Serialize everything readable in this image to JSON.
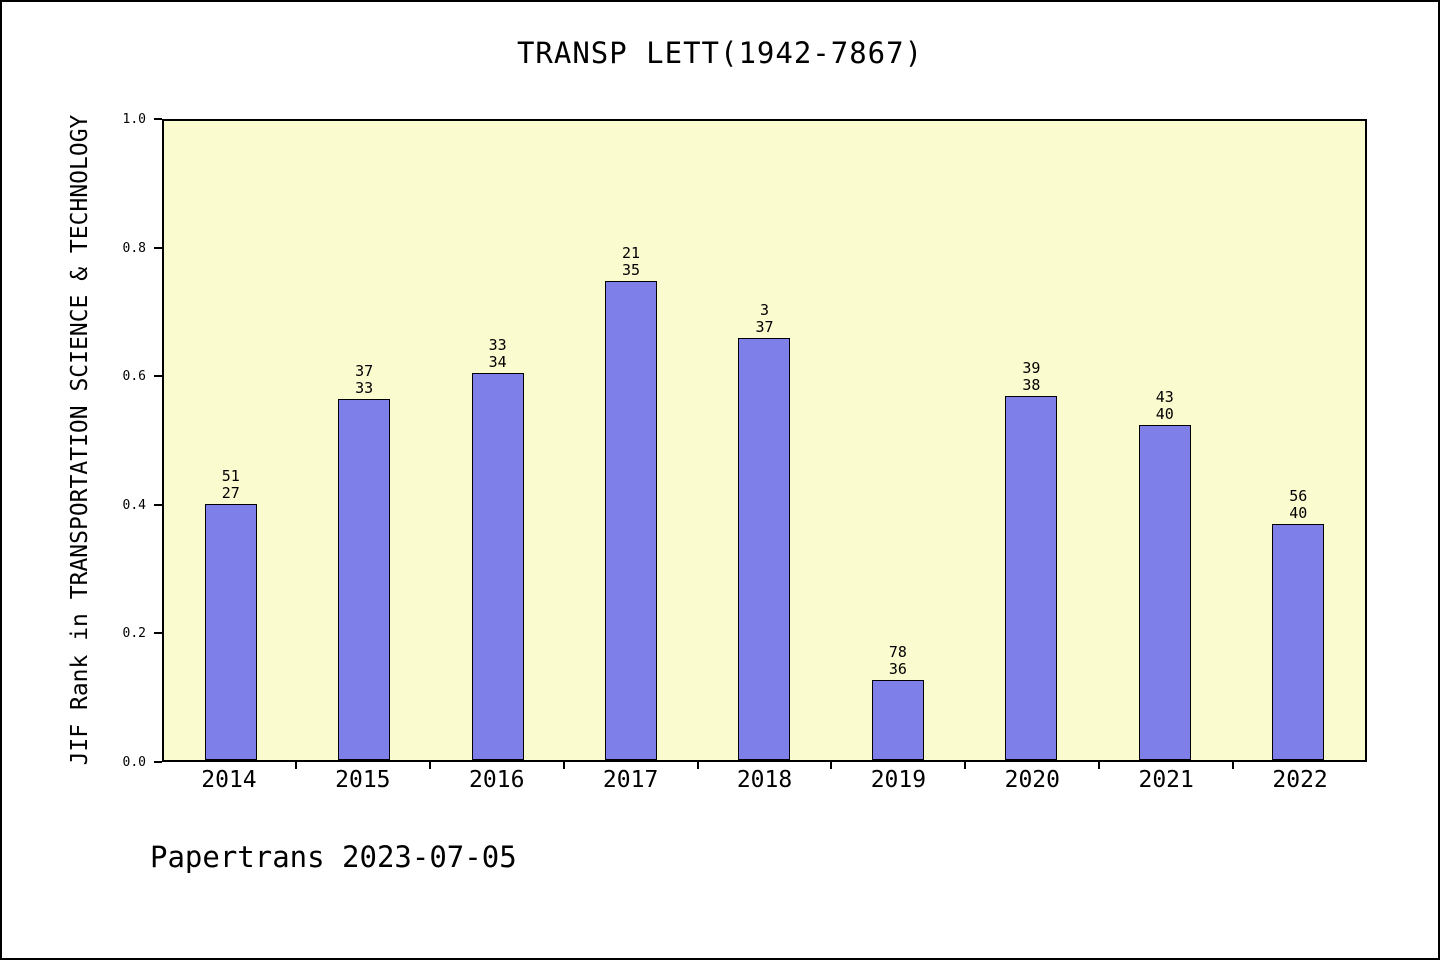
{
  "chart_data": {
    "type": "bar",
    "title": "TRANSP LETT(1942-7867)",
    "ylabel": "JIF Rank in TRANSPORTATION SCIENCE & TECHNOLOGY",
    "xlabel": "",
    "categories": [
      "2014",
      "2015",
      "2016",
      "2017",
      "2018",
      "2019",
      "2020",
      "2021",
      "2022"
    ],
    "values": [
      0.4,
      0.565,
      0.605,
      0.75,
      0.66,
      0.125,
      0.57,
      0.525,
      0.37
    ],
    "bar_labels": [
      [
        "51",
        "27"
      ],
      [
        "37",
        "33"
      ],
      [
        "33",
        "34"
      ],
      [
        "21",
        "35"
      ],
      [
        "3",
        "37"
      ],
      [
        "78",
        "36"
      ],
      [
        "39",
        "38"
      ],
      [
        "43",
        "40"
      ],
      [
        "56",
        "40"
      ]
    ],
    "ylim": [
      0.0,
      1.0
    ],
    "yticks": [
      "0.0",
      "0.2",
      "0.4",
      "0.6",
      "0.8",
      "1.0"
    ],
    "grid": false,
    "legend_position": "none",
    "colors": {
      "bar_fill": "#7f7fe9",
      "bar_edge": "#000000",
      "plot_background": "#fbfbd0",
      "page_background": "#ffffff"
    }
  },
  "footer": {
    "text": "Papertrans 2023-07-05"
  }
}
